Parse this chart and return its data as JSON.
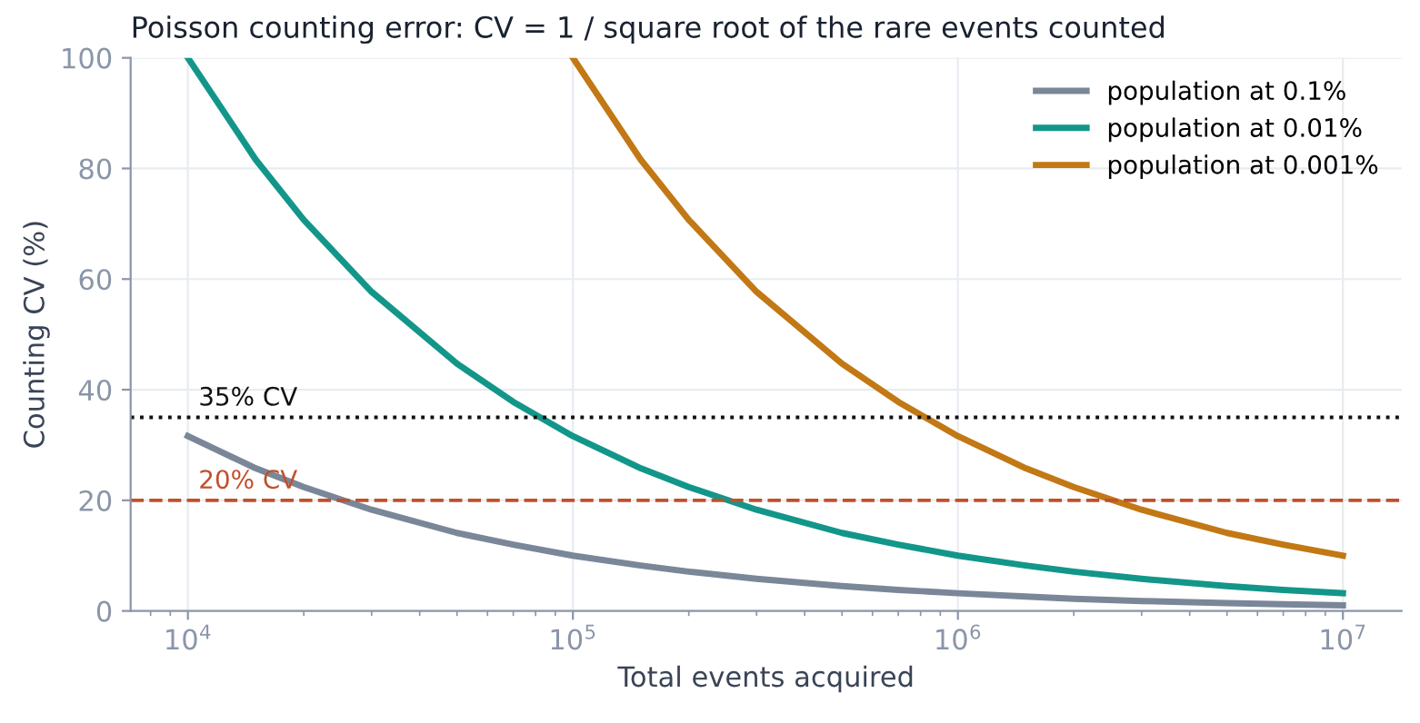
{
  "chart_data": {
    "type": "line",
    "title": "Poisson counting error: CV = 1 / square root of the rare events counted",
    "xlabel": "Total events acquired",
    "ylabel": "Counting CV (%)",
    "log": "x",
    "xlim": [
      7100,
      14200000
    ],
    "xticks": [
      {
        "value": 10000,
        "label": "10$^{4}$"
      },
      {
        "value": 100000,
        "label": "10$^{5}$"
      },
      {
        "value": 1000000,
        "label": "10$^{6}$"
      },
      {
        "value": 10000000,
        "label": "10$^{7}$"
      }
    ],
    "ylim": [
      0,
      100
    ],
    "yticks": [
      0,
      20,
      40,
      60,
      80,
      100
    ],
    "grid": true,
    "legend": "top right",
    "marker": "none",
    "line_style": "solid",
    "series": [
      {
        "name": "population at 0.1%",
        "color": "#7a8799",
        "x": [
          10000,
          15000,
          20000,
          30000,
          50000,
          70000,
          100000,
          150000,
          200000,
          300000,
          500000,
          700000,
          1000000,
          1500000,
          2000000,
          3000000,
          5000000,
          7000000,
          10000000
        ],
        "values": [
          31.6,
          25.8,
          22.4,
          18.3,
          14.1,
          12.0,
          10.0,
          8.2,
          7.1,
          5.8,
          4.5,
          3.8,
          3.2,
          2.6,
          2.2,
          1.8,
          1.4,
          1.2,
          1.0
        ]
      },
      {
        "name": "population at 0.01%",
        "color": "#13968a",
        "x": [
          10000,
          15000,
          20000,
          30000,
          50000,
          70000,
          100000,
          150000,
          200000,
          300000,
          500000,
          700000,
          1000000,
          1500000,
          2000000,
          3000000,
          5000000,
          7000000,
          10000000
        ],
        "values": [
          100,
          81.6,
          70.7,
          57.7,
          44.7,
          37.8,
          31.6,
          25.8,
          22.4,
          18.3,
          14.1,
          12.0,
          10.0,
          8.2,
          7.1,
          5.8,
          4.5,
          3.8,
          3.2
        ]
      },
      {
        "name": "population at 0.001%",
        "color": "#c27814",
        "x": [
          100000,
          150000,
          200000,
          300000,
          500000,
          700000,
          1000000,
          1500000,
          2000000,
          3000000,
          5000000,
          7000000,
          10000000
        ],
        "values": [
          100,
          81.6,
          70.7,
          57.7,
          44.7,
          37.8,
          31.6,
          25.8,
          22.4,
          18.3,
          14.1,
          12.0,
          10.0
        ]
      }
    ],
    "ref_lines": [
      {
        "axis": "y",
        "value": 35,
        "label": "35% CV",
        "color": "#111111",
        "line_style": "dotted"
      },
      {
        "axis": "y",
        "value": 20,
        "label": "20% CV",
        "color": "#c0502d",
        "line_style": "dashed"
      }
    ]
  }
}
